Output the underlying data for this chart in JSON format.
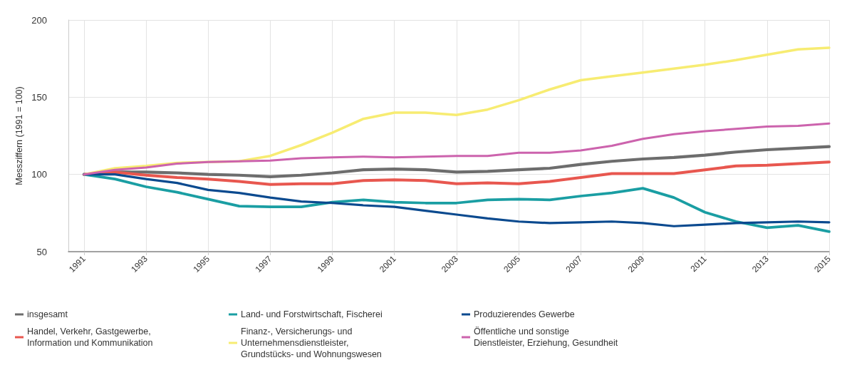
{
  "chart_data": {
    "type": "line",
    "ylabel": "Messziffern (1991 = 100)",
    "x": [
      1991,
      1992,
      1993,
      1994,
      1995,
      1996,
      1997,
      1998,
      1999,
      2000,
      2001,
      2002,
      2003,
      2004,
      2005,
      2006,
      2007,
      2008,
      2009,
      2010,
      2011,
      2012,
      2013,
      2014,
      2015
    ],
    "xlim": [
      1990.5,
      2015
    ],
    "xticks": [
      1991,
      1993,
      1995,
      1997,
      1999,
      2001,
      2003,
      2005,
      2007,
      2009,
      2011,
      2013,
      2015
    ],
    "ylim": [
      50,
      200
    ],
    "yticks": [
      50,
      100,
      150,
      200
    ],
    "grid": true,
    "legend": "bottom",
    "marker": "none",
    "line_style": "solid",
    "series": [
      {
        "name": "insgesamt",
        "color": "#6d6d6d",
        "values": [
          100,
          101.5,
          101.5,
          101,
          100,
          99.5,
          98.5,
          99.5,
          101,
          103,
          103.5,
          103,
          101.5,
          102,
          103,
          104,
          106.5,
          108.5,
          110,
          111,
          112.5,
          114.5,
          116,
          117,
          118
        ]
      },
      {
        "name": "Handel, Verkehr, Gastgewerbe,\nInformation und Kommunikation",
        "color": "#e8574f",
        "values": [
          100,
          101.5,
          99.5,
          98,
          97,
          95.5,
          93.5,
          94,
          94,
          96,
          96.5,
          96,
          94,
          94.5,
          94,
          95.5,
          98,
          100.5,
          100.5,
          100.5,
          103,
          105.5,
          106,
          107,
          108
        ]
      },
      {
        "name": "Land- und Forstwirtschaft, Fischerei",
        "color": "#1a9ea3",
        "values": [
          100,
          97,
          92,
          88.5,
          84,
          79.5,
          79,
          79,
          82,
          83.5,
          82,
          81.5,
          81.5,
          83.5,
          84,
          83.5,
          86,
          88,
          91,
          85,
          75.5,
          69.5,
          65.5,
          67,
          63
        ]
      },
      {
        "name": "Finanz-, Versicherungs- und\nUnternehmensdienstleister,\nGrundstücks- und Wohnungswesen",
        "color": "#f7ec72",
        "values": [
          100,
          104,
          105.5,
          107.5,
          108,
          108.5,
          112,
          119,
          127,
          136,
          140,
          140,
          138.5,
          142,
          148,
          155,
          161,
          163.5,
          166,
          168.5,
          171,
          174,
          177.5,
          181,
          182
        ]
      },
      {
        "name": "Produzierendes Gewerbe",
        "color": "#0b4a8f",
        "values": [
          100,
          100,
          97,
          94.5,
          90,
          88,
          85,
          82.5,
          81.5,
          80,
          79,
          76.5,
          74,
          71.5,
          69.5,
          68.5,
          69,
          69.5,
          68.5,
          66.5,
          67.5,
          68.5,
          69,
          69.5,
          69
        ]
      },
      {
        "name": "Öffentliche und sonstige\nDienstleister, Erziehung, Gesundheit",
        "color": "#cc63ad",
        "values": [
          100,
          103,
          104.5,
          107,
          108,
          108.5,
          109,
          110.5,
          111,
          111.5,
          111,
          111.5,
          112,
          112,
          114,
          114,
          115.5,
          118.5,
          123,
          126,
          128,
          129.5,
          131,
          131.5,
          133
        ]
      }
    ]
  }
}
